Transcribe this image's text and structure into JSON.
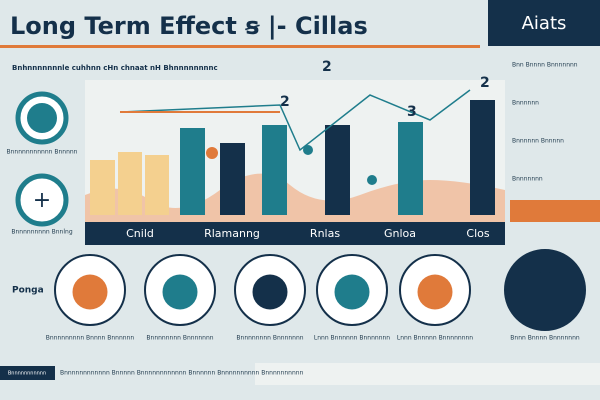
{
  "header": {
    "title": "Long Term Effect ꞩ |- Cillas",
    "badge": "Aiats",
    "subtitle": "Bnhnnnnnnnle cuhhnn cHn chnaat nH Bhnnnnnnnnc"
  },
  "left": {
    "items": [
      "Bnnnnnnnnnnn Bnnnnn",
      "Bnnnnnnnnn Bnnlng"
    ]
  },
  "chart": {
    "categories": [
      "Cnild",
      "Rlamanng",
      "Rnlas",
      "Gnloa",
      "Clos"
    ],
    "annotations": [
      "2",
      "3",
      "2",
      "2"
    ]
  },
  "right": {
    "notes": [
      "Bnn Bnnnn Bnnnnnnn",
      "Bnnnnnn",
      "Bnnnnnn Bnnnnn",
      "Bnnnnnnn",
      "Bnnnnnnnnn Bnnnn"
    ]
  },
  "bottom": {
    "label": "Ponga",
    "captions": [
      "Bnnnnnnnnn Bnnnn Bnnnnnn",
      "Bnnnnnnnn Bnnnnnnn",
      "Bnnnnnnnn Bnnnnnnn",
      "Lnnn Bnnnnnn Bnnnnnnn",
      "Lnnn Bnnnnn Bnnnnnnnn",
      "Bnnn Bnnnn Bnnnnnnn"
    ],
    "footer_left": "Bnnnnnnnnnnn",
    "footer_text": "Bnnnnnnnnnnnn Bnnnnn Bnnnnnnnnnnnn Bnnnnnn Bnnnnnnnnnn Bnnnnnnnnnn"
  }
}
